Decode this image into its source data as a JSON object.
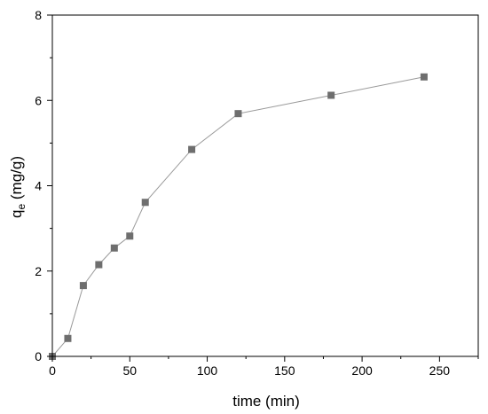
{
  "chart_data": {
    "type": "line",
    "xlabel": "time (min)",
    "ylabel": {
      "main": "q",
      "subscript": "e",
      "unit": " (mg/g)"
    },
    "xlim": [
      0,
      275
    ],
    "ylim": [
      0,
      8
    ],
    "xticks": [
      0,
      50,
      100,
      150,
      200,
      250
    ],
    "yticks": [
      0,
      2,
      4,
      6,
      8
    ],
    "grid": false,
    "colors": {
      "line": "#9a9a9a",
      "marker": "#6e6e6e",
      "axis": "#000000"
    },
    "series": [
      {
        "marker": "square",
        "x": [
          0,
          10,
          20,
          30,
          40,
          50,
          60,
          90,
          120,
          180,
          240
        ],
        "y": [
          0,
          0.42,
          1.66,
          2.15,
          2.54,
          2.82,
          3.61,
          4.85,
          5.69,
          6.12,
          6.55
        ]
      }
    ]
  }
}
